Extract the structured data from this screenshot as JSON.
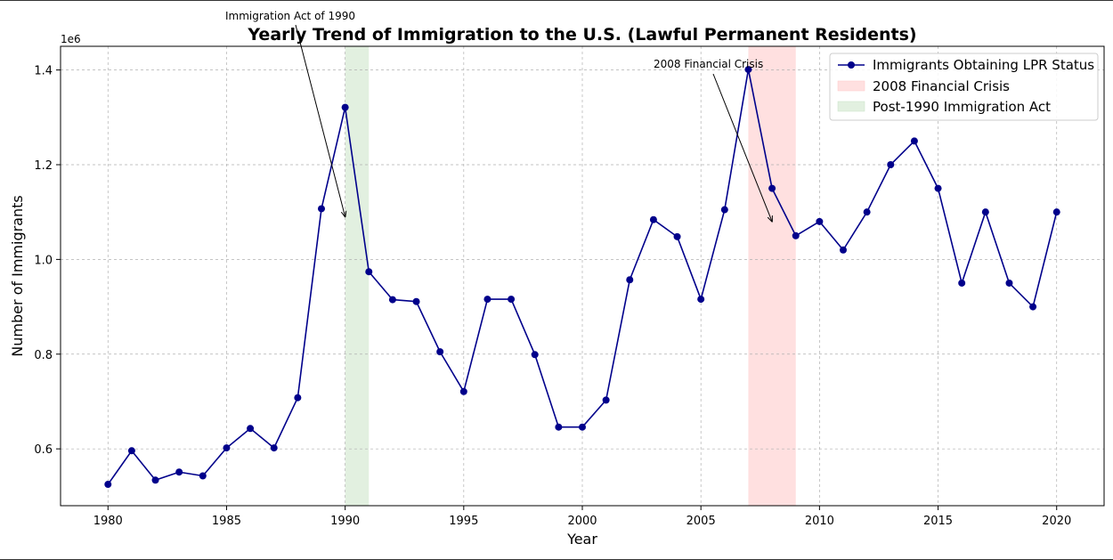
{
  "chart_data": {
    "type": "line",
    "title": "Yearly Trend of Immigration to the U.S. (Lawful Permanent Residents)",
    "xlabel": "Year",
    "ylabel": "Number of Immigrants",
    "y_offset_label": "1e6",
    "xlim": [
      1978,
      2022
    ],
    "ylim": [
      0.48,
      1.45
    ],
    "y_scale_multiplier": 1000000,
    "x_ticks": [
      1980,
      1985,
      1990,
      1995,
      2000,
      2005,
      2010,
      2015,
      2020
    ],
    "x_tick_labels": [
      "1980",
      "1985",
      "1990",
      "1995",
      "2000",
      "2005",
      "2010",
      "2015",
      "2020"
    ],
    "y_ticks": [
      0.6,
      0.8,
      1.0,
      1.2,
      1.4
    ],
    "y_tick_labels": [
      "0.6",
      "0.8",
      "1.0",
      "1.2",
      "1.4"
    ],
    "grid": true,
    "legend_placement": "top-right",
    "series": [
      {
        "name": "Immigrants Obtaining LPR Status",
        "color": "#00008b",
        "x": [
          1980,
          1981,
          1982,
          1983,
          1984,
          1985,
          1986,
          1987,
          1988,
          1989,
          1990,
          1991,
          1992,
          1993,
          1994,
          1995,
          1996,
          1997,
          1998,
          1999,
          2000,
          2001,
          2002,
          2003,
          2004,
          2005,
          2006,
          2007,
          2008,
          2009,
          2010,
          2011,
          2012,
          2013,
          2014,
          2015,
          2016,
          2017,
          2018,
          2019,
          2020
        ],
        "values": [
          0.525,
          0.596,
          0.534,
          0.551,
          0.543,
          0.602,
          0.643,
          0.602,
          0.708,
          1.107,
          1.321,
          0.974,
          0.915,
          0.911,
          0.805,
          0.721,
          0.916,
          0.916,
          0.799,
          0.646,
          0.646,
          0.703,
          0.957,
          1.084,
          1.048,
          0.916,
          1.105,
          1.401,
          1.15,
          1.05,
          1.08,
          1.02,
          1.1,
          1.2,
          1.25,
          1.15,
          0.95,
          1.1,
          0.95,
          0.9,
          1.1
        ]
      }
    ],
    "shaded_regions": [
      {
        "name": "2008 Financial Crisis",
        "x_start": 2007,
        "x_end": 2009,
        "color": "#ffe0e0"
      },
      {
        "name": "Post-1990 Immigration Act",
        "x_start": 1990,
        "x_end": 1991,
        "color": "#e2f0e0"
      }
    ],
    "annotations": [
      {
        "text": "Immigration Act of 1990",
        "point_x": 1990,
        "point_y": 1.09
      },
      {
        "text": "2008 Financial Crisis",
        "point_x": 2008,
        "point_y": 1.08
      }
    ]
  }
}
